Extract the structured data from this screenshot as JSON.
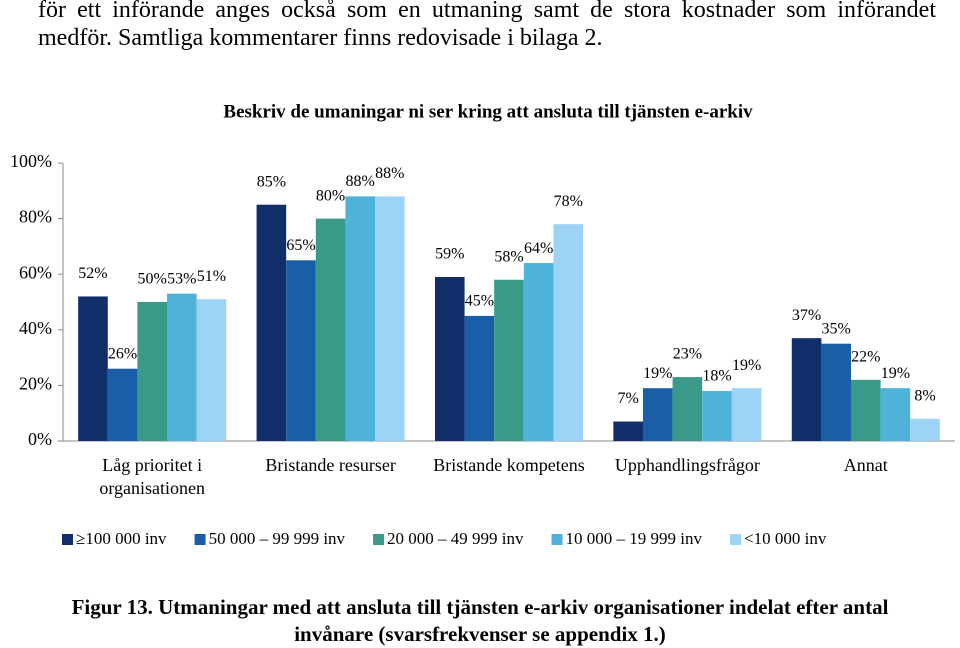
{
  "body_text": "för ett införande anges också som en utmaning samt de stora kostnader som införandet medför. Samtliga kommentarer finns redovisade i bilaga 2.",
  "chart_data": {
    "type": "bar",
    "title": "Beskriv de umaningar ni ser kring att ansluta till tjänsten e-arkiv",
    "categories": [
      "Låg prioritet i organisationen",
      "Bristande resurser",
      "Bristande kompetens",
      "Upphandlingsfrågor",
      "Annat"
    ],
    "series": [
      {
        "name": "≥100 000 inv",
        "color": "#0f2e6a",
        "values": [
          52,
          85,
          59,
          7,
          37
        ],
        "value_labels": [
          "52%",
          "85%",
          "59%",
          "7%",
          "37%"
        ]
      },
      {
        "name": "50 000 – 99 999 inv",
        "color": "#1b5ea8",
        "values": [
          26,
          65,
          45,
          19,
          35
        ],
        "value_labels": [
          "26%",
          "65%",
          "45%",
          "19%",
          "35%"
        ]
      },
      {
        "name": "20 000 – 49 999 inv",
        "color": "#3a9a8a",
        "values": [
          50,
          80,
          58,
          23,
          22
        ],
        "value_labels": [
          "50%",
          "80%",
          "58%",
          "23%",
          "22%"
        ]
      },
      {
        "name": "10 000 – 19 999 inv",
        "color": "#4fb3d9",
        "values": [
          53,
          88,
          64,
          18,
          19
        ],
        "value_labels": [
          "53%",
          "88%",
          "64%",
          "18%",
          "19%"
        ]
      },
      {
        "name": "<10 000 inv",
        "color": "#9dd3f6",
        "values": [
          51,
          88,
          78,
          19,
          8
        ],
        "value_labels": [
          "51%",
          "88%",
          "78%",
          "19%",
          "8%"
        ]
      }
    ],
    "ylim": [
      0,
      100
    ],
    "yticks": [
      {
        "value": 0,
        "label": "0%"
      },
      {
        "value": 20,
        "label": "20%"
      },
      {
        "value": 40,
        "label": "40%"
      },
      {
        "value": 60,
        "label": "60%"
      },
      {
        "value": 80,
        "label": "80%"
      },
      {
        "value": 100,
        "label": "100%"
      }
    ],
    "grid": false,
    "legend": "bottom"
  },
  "caption": "Figur 13. Utmaningar med att ansluta till tjänsten e-arkiv organisationer indelat efter antal invånare (svarsfrekvenser se appendix 1.)"
}
